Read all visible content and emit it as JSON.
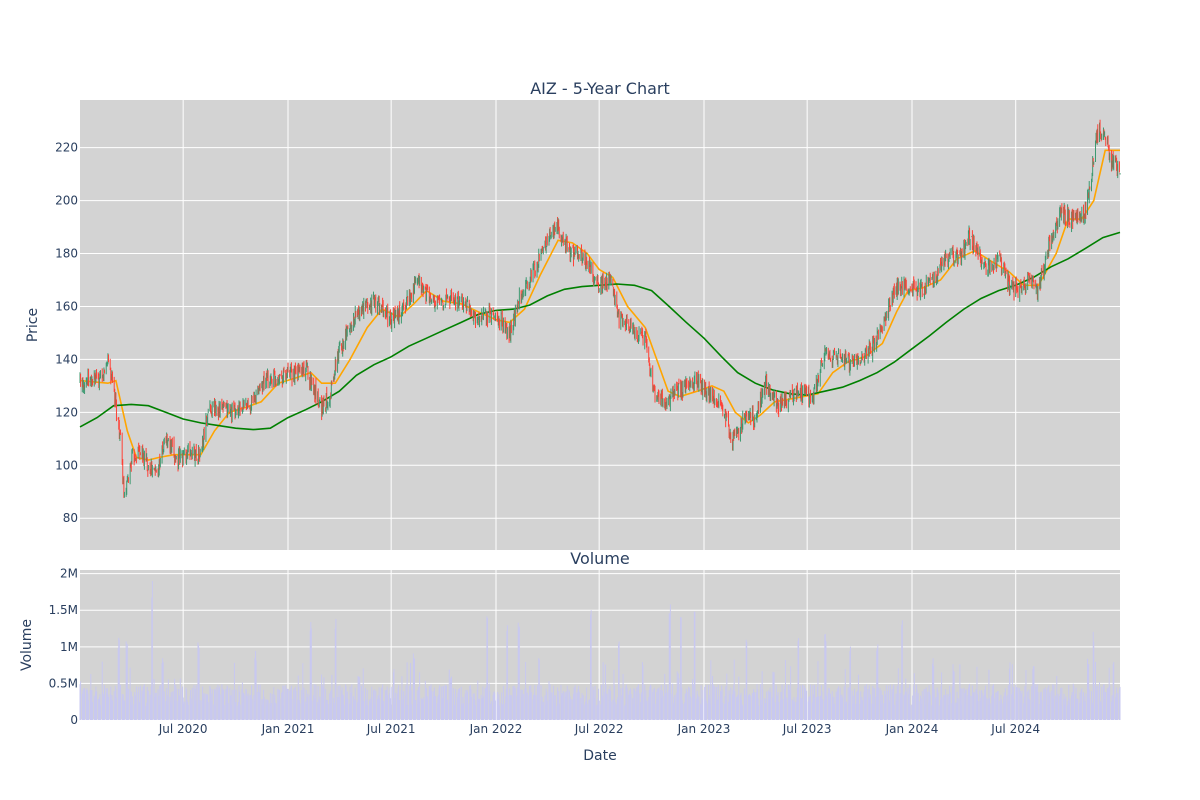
{
  "chart_data": {
    "type": "candlestick",
    "title": "AIZ - 5-Year Chart",
    "colors": {
      "panel_bg": "#d3d3d3",
      "grid": "#ffffff",
      "increasing": "#3d9970",
      "decreasing": "#ff4136",
      "ma_short": "#ffa500",
      "ma_long": "#008000",
      "volume_bar": "#c8c8f0",
      "text": "#2a3f5f"
    },
    "price_panel": {
      "ylabel": "Price",
      "ylim": [
        68,
        238
      ],
      "yticks": [
        80,
        100,
        120,
        140,
        160,
        180,
        200,
        220
      ],
      "price_keypoints": [
        [
          "2020-01-02",
          132
        ],
        [
          "2020-02-10",
          132
        ],
        [
          "2020-02-20",
          141
        ],
        [
          "2020-03-01",
          128
        ],
        [
          "2020-03-12",
          112
        ],
        [
          "2020-03-20",
          86
        ],
        [
          "2020-04-01",
          102
        ],
        [
          "2020-04-15",
          106
        ],
        [
          "2020-05-01",
          100
        ],
        [
          "2020-05-15",
          97
        ],
        [
          "2020-06-01",
          110
        ],
        [
          "2020-06-20",
          102
        ],
        [
          "2020-07-10",
          105
        ],
        [
          "2020-08-01",
          104
        ],
        [
          "2020-08-15",
          122
        ],
        [
          "2020-09-15",
          121
        ],
        [
          "2020-10-01",
          120
        ],
        [
          "2020-11-01",
          124
        ],
        [
          "2020-11-15",
          131
        ],
        [
          "2020-12-15",
          134
        ],
        [
          "2021-01-10",
          134
        ],
        [
          "2021-02-01",
          137
        ],
        [
          "2021-03-01",
          122
        ],
        [
          "2021-03-15",
          126
        ],
        [
          "2021-04-01",
          144
        ],
        [
          "2021-05-01",
          157
        ],
        [
          "2021-06-01",
          162
        ],
        [
          "2021-07-01",
          155
        ],
        [
          "2021-07-15",
          157
        ],
        [
          "2021-08-15",
          169
        ],
        [
          "2021-09-15",
          161
        ],
        [
          "2021-10-15",
          163
        ],
        [
          "2021-11-15",
          160
        ],
        [
          "2021-12-01",
          154
        ],
        [
          "2021-12-20",
          157
        ],
        [
          "2022-01-10",
          155
        ],
        [
          "2022-01-25",
          150
        ],
        [
          "2022-02-15",
          166
        ],
        [
          "2022-03-01",
          170
        ],
        [
          "2022-04-01",
          185
        ],
        [
          "2022-04-20",
          190
        ],
        [
          "2022-05-10",
          180
        ],
        [
          "2022-06-01",
          179
        ],
        [
          "2022-07-01",
          168
        ],
        [
          "2022-07-20",
          170
        ],
        [
          "2022-08-05",
          155
        ],
        [
          "2022-09-01",
          150
        ],
        [
          "2022-09-20",
          148
        ],
        [
          "2022-10-05",
          127
        ],
        [
          "2022-10-25",
          124
        ],
        [
          "2022-11-15",
          128
        ],
        [
          "2022-12-20",
          132
        ],
        [
          "2023-01-10",
          127
        ],
        [
          "2023-02-01",
          123
        ],
        [
          "2023-02-20",
          109
        ],
        [
          "2023-03-15",
          118
        ],
        [
          "2023-04-01",
          118
        ],
        [
          "2023-04-20",
          131
        ],
        [
          "2023-05-10",
          122
        ],
        [
          "2023-06-01",
          126
        ],
        [
          "2023-06-20",
          128
        ],
        [
          "2023-07-10",
          124
        ],
        [
          "2023-08-01",
          142
        ],
        [
          "2023-09-01",
          140
        ],
        [
          "2023-09-20",
          139
        ],
        [
          "2023-10-20",
          143
        ],
        [
          "2023-11-10",
          152
        ],
        [
          "2023-12-01",
          166
        ],
        [
          "2023-12-20",
          168
        ],
        [
          "2024-01-20",
          166
        ],
        [
          "2024-02-10",
          171
        ],
        [
          "2024-03-10",
          181
        ],
        [
          "2024-03-25",
          178
        ],
        [
          "2024-04-10",
          186
        ],
        [
          "2024-05-10",
          174
        ],
        [
          "2024-06-01",
          178
        ],
        [
          "2024-06-20",
          168
        ],
        [
          "2024-07-10",
          166
        ],
        [
          "2024-07-25",
          170
        ],
        [
          "2024-08-10",
          166
        ],
        [
          "2024-09-01",
          186
        ],
        [
          "2024-09-20",
          196
        ],
        [
          "2024-10-10",
          192
        ],
        [
          "2024-11-01",
          196
        ],
        [
          "2024-11-20",
          224
        ],
        [
          "2024-12-01",
          228
        ],
        [
          "2024-12-15",
          215
        ],
        [
          "2024-12-31",
          212
        ]
      ],
      "ma_short_keypoints": [
        [
          "2020-01-02",
          132
        ],
        [
          "2020-02-20",
          131
        ],
        [
          "2020-03-05",
          132
        ],
        [
          "2020-03-25",
          113
        ],
        [
          "2020-04-10",
          103
        ],
        [
          "2020-05-01",
          102
        ],
        [
          "2020-05-20",
          103
        ],
        [
          "2020-06-15",
          104
        ],
        [
          "2020-07-10",
          104
        ],
        [
          "2020-08-01",
          104
        ],
        [
          "2020-08-25",
          113
        ],
        [
          "2020-09-20",
          120
        ],
        [
          "2020-10-20",
          122
        ],
        [
          "2020-11-15",
          124
        ],
        [
          "2020-12-15",
          131
        ],
        [
          "2021-01-15",
          133
        ],
        [
          "2021-02-10",
          135
        ],
        [
          "2021-03-01",
          131
        ],
        [
          "2021-03-25",
          131
        ],
        [
          "2021-04-20",
          140
        ],
        [
          "2021-05-20",
          152
        ],
        [
          "2021-06-15",
          159
        ],
        [
          "2021-07-15",
          156
        ],
        [
          "2021-08-10",
          161
        ],
        [
          "2021-09-01",
          166
        ],
        [
          "2021-10-01",
          162
        ],
        [
          "2021-11-01",
          161
        ],
        [
          "2021-12-01",
          158
        ],
        [
          "2022-01-01",
          155
        ],
        [
          "2022-01-25",
          154
        ],
        [
          "2022-02-20",
          159
        ],
        [
          "2022-03-20",
          172
        ],
        [
          "2022-04-20",
          185
        ],
        [
          "2022-05-15",
          184
        ],
        [
          "2022-06-10",
          180
        ],
        [
          "2022-07-01",
          174
        ],
        [
          "2022-07-25",
          171
        ],
        [
          "2022-08-20",
          160
        ],
        [
          "2022-09-20",
          152
        ],
        [
          "2022-10-10",
          140
        ],
        [
          "2022-10-30",
          128
        ],
        [
          "2022-11-20",
          126
        ],
        [
          "2022-12-20",
          128
        ],
        [
          "2023-01-15",
          130
        ],
        [
          "2023-02-05",
          128
        ],
        [
          "2023-02-25",
          120
        ],
        [
          "2023-03-20",
          116
        ],
        [
          "2023-04-10",
          119
        ],
        [
          "2023-05-05",
          124
        ],
        [
          "2023-06-01",
          125
        ],
        [
          "2023-06-25",
          126
        ],
        [
          "2023-07-20",
          127
        ],
        [
          "2023-08-15",
          135
        ],
        [
          "2023-09-10",
          139
        ],
        [
          "2023-10-10",
          141
        ],
        [
          "2023-11-10",
          146
        ],
        [
          "2023-12-05",
          158
        ],
        [
          "2023-12-25",
          166
        ],
        [
          "2024-01-20",
          167
        ],
        [
          "2024-02-20",
          170
        ],
        [
          "2024-03-20",
          178
        ],
        [
          "2024-04-20",
          181
        ],
        [
          "2024-05-20",
          177
        ],
        [
          "2024-06-20",
          173
        ],
        [
          "2024-07-15",
          168
        ],
        [
          "2024-08-10",
          168
        ],
        [
          "2024-09-10",
          180
        ],
        [
          "2024-10-01",
          193
        ],
        [
          "2024-10-25",
          193
        ],
        [
          "2024-11-15",
          200
        ],
        [
          "2024-12-05",
          219
        ],
        [
          "2024-12-31",
          219
        ]
      ],
      "ma_long_keypoints": [
        [
          "2020-01-02",
          114.5
        ],
        [
          "2020-02-01",
          118
        ],
        [
          "2020-03-01",
          122.5
        ],
        [
          "2020-04-01",
          123
        ],
        [
          "2020-05-01",
          122.5
        ],
        [
          "2020-06-01",
          120
        ],
        [
          "2020-07-01",
          117.5
        ],
        [
          "2020-08-01",
          116
        ],
        [
          "2020-09-01",
          115
        ],
        [
          "2020-10-01",
          114
        ],
        [
          "2020-11-01",
          113.5
        ],
        [
          "2020-12-01",
          114
        ],
        [
          "2021-01-01",
          118
        ],
        [
          "2021-02-01",
          121
        ],
        [
          "2021-03-01",
          124
        ],
        [
          "2021-04-01",
          128
        ],
        [
          "2021-05-01",
          134
        ],
        [
          "2021-06-01",
          138
        ],
        [
          "2021-07-01",
          141
        ],
        [
          "2021-08-01",
          145
        ],
        [
          "2021-09-01",
          148
        ],
        [
          "2021-10-01",
          151
        ],
        [
          "2021-11-01",
          154
        ],
        [
          "2021-12-01",
          157
        ],
        [
          "2022-01-01",
          158.5
        ],
        [
          "2022-02-01",
          159
        ],
        [
          "2022-03-01",
          160.5
        ],
        [
          "2022-04-01",
          164
        ],
        [
          "2022-05-01",
          166.5
        ],
        [
          "2022-06-01",
          167.5
        ],
        [
          "2022-07-01",
          168
        ],
        [
          "2022-08-01",
          168.5
        ],
        [
          "2022-09-01",
          168
        ],
        [
          "2022-10-01",
          166
        ],
        [
          "2022-11-01",
          160
        ],
        [
          "2022-12-01",
          154
        ],
        [
          "2023-01-01",
          148
        ],
        [
          "2023-02-01",
          141
        ],
        [
          "2023-03-01",
          135
        ],
        [
          "2023-04-01",
          131
        ],
        [
          "2023-05-01",
          128.5
        ],
        [
          "2023-06-01",
          127
        ],
        [
          "2023-07-01",
          126.5
        ],
        [
          "2023-08-01",
          128
        ],
        [
          "2023-09-01",
          129.5
        ],
        [
          "2023-10-01",
          132
        ],
        [
          "2023-11-01",
          135
        ],
        [
          "2023-12-01",
          139
        ],
        [
          "2024-01-01",
          144
        ],
        [
          "2024-02-01",
          149
        ],
        [
          "2024-03-01",
          154
        ],
        [
          "2024-04-01",
          159
        ],
        [
          "2024-05-01",
          163
        ],
        [
          "2024-06-01",
          166
        ],
        [
          "2024-07-01",
          168
        ],
        [
          "2024-08-01",
          171
        ],
        [
          "2024-09-01",
          175
        ],
        [
          "2024-10-01",
          178
        ],
        [
          "2024-11-01",
          182
        ],
        [
          "2024-12-01",
          186
        ],
        [
          "2024-12-31",
          188
        ]
      ]
    },
    "volume_panel": {
      "title": "Volume",
      "ylabel": "Volume",
      "ylim": [
        0,
        2050000
      ],
      "yticks": [
        0,
        500000,
        1000000,
        1500000,
        2000000
      ],
      "ytick_labels": [
        "0",
        "0.5M",
        "1M",
        "1.5M",
        "2M"
      ],
      "base_volume": 350000,
      "spikes": [
        [
          "2020-03-10",
          1150000
        ],
        [
          "2020-03-24",
          1100000
        ],
        [
          "2020-05-08",
          1950000
        ],
        [
          "2020-05-26",
          850000
        ],
        [
          "2020-07-28",
          1150000
        ],
        [
          "2020-11-05",
          950000
        ],
        [
          "2021-02-10",
          1350000
        ],
        [
          "2021-03-26",
          1450000
        ],
        [
          "2021-05-06",
          600000
        ],
        [
          "2021-07-05",
          700000
        ],
        [
          "2021-08-10",
          950000
        ],
        [
          "2021-10-14",
          600000
        ],
        [
          "2021-12-17",
          1500000
        ],
        [
          "2022-01-21",
          1300000
        ],
        [
          "2022-02-10",
          1450000
        ],
        [
          "2022-03-18",
          900000
        ],
        [
          "2022-06-17",
          1500000
        ],
        [
          "2022-08-05",
          1100000
        ],
        [
          "2022-09-16",
          800000
        ],
        [
          "2022-11-02",
          1650000
        ],
        [
          "2022-11-21",
          1550000
        ],
        [
          "2022-12-16",
          1600000
        ],
        [
          "2023-03-17",
          1250000
        ],
        [
          "2023-05-03",
          700000
        ],
        [
          "2023-06-16",
          1150000
        ],
        [
          "2023-08-02",
          1200000
        ],
        [
          "2023-09-15",
          1050000
        ],
        [
          "2023-11-01",
          1050000
        ],
        [
          "2023-12-15",
          1500000
        ],
        [
          "2024-02-07",
          850000
        ],
        [
          "2024-03-15",
          700000
        ],
        [
          "2024-06-21",
          800000
        ],
        [
          "2024-08-01",
          750000
        ],
        [
          "2024-11-05",
          850000
        ],
        [
          "2024-11-15",
          1250000
        ],
        [
          "2024-12-20",
          850000
        ]
      ]
    },
    "x_axis": {
      "xlabel": "Date",
      "range": [
        "2020-01-02",
        "2024-12-31"
      ],
      "ticks": [
        "2020-07-01",
        "2021-01-01",
        "2021-07-01",
        "2022-01-01",
        "2022-07-01",
        "2023-01-01",
        "2023-07-01",
        "2024-01-01",
        "2024-07-01"
      ],
      "tick_labels": [
        "Jul 2020",
        "Jan 2021",
        "Jul 2021",
        "Jan 2022",
        "Jul 2022",
        "Jan 2023",
        "Jul 2023",
        "Jan 2024",
        "Jul 2024"
      ]
    }
  }
}
